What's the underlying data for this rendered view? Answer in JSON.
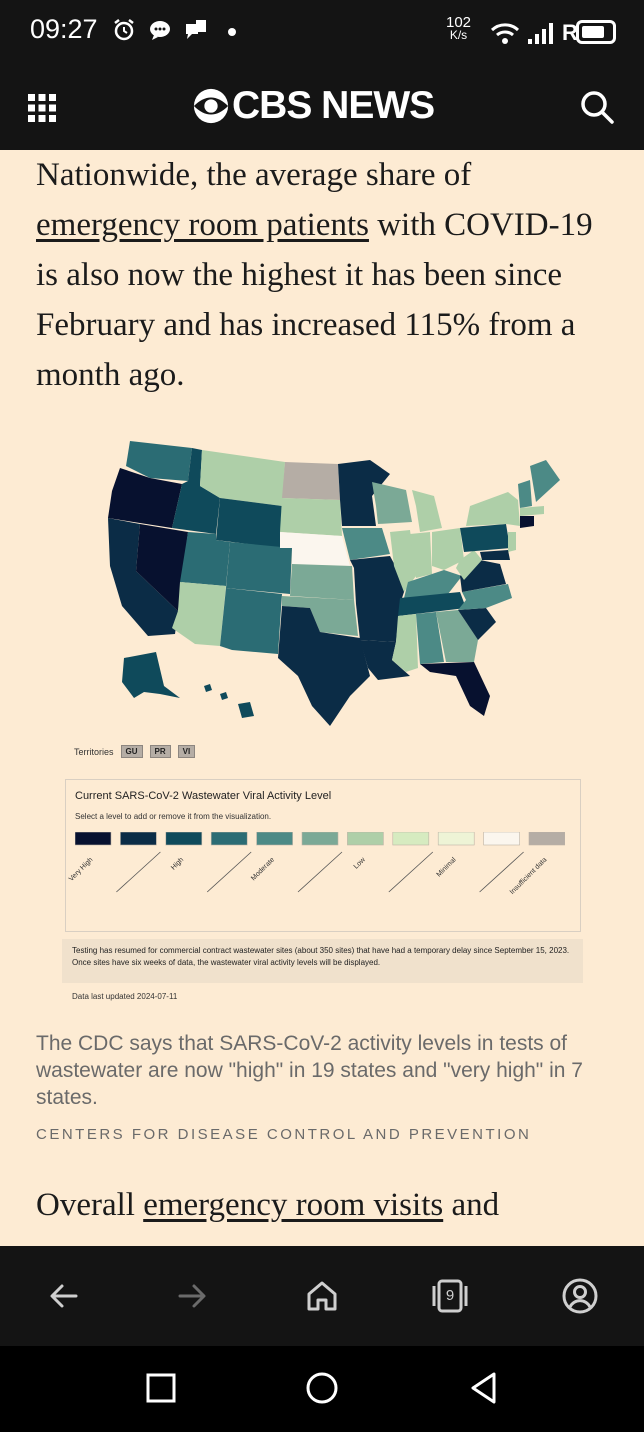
{
  "status_bar": {
    "time": "09:27",
    "speed_value": "102",
    "speed_unit": "K/s",
    "carrier_letter": "R",
    "icons": [
      "alarm-icon",
      "chat-icon",
      "message-icon",
      "dot-icon",
      "wifi-icon",
      "signal-icon",
      "battery-icon"
    ]
  },
  "header": {
    "logo_text": "CBS NEWS",
    "icons": [
      "grid-menu-icon",
      "cbs-eye-logo",
      "search-icon"
    ]
  },
  "article": {
    "para1": {
      "before": "Nationwide, the average share of ",
      "link": "emergency room patients",
      "after": " with COVID-19 is also now the highest it has been since February and has increased 115% from a month ago."
    },
    "figure": {
      "territories_label": "Territories",
      "territories": [
        "GU",
        "PR",
        "VI"
      ],
      "legend_title": "Current SARS-CoV-2 Wastewater Viral Activity Level",
      "legend_subtitle": "Select a level to add or remove it from the visualization.",
      "legend_levels": [
        {
          "label": "Very High",
          "color": "#07112f"
        },
        {
          "label": "",
          "color": "#0b2c46"
        },
        {
          "label": "High",
          "color": "#0f4a5b"
        },
        {
          "label": "",
          "color": "#2b6c74"
        },
        {
          "label": "Moderate",
          "color": "#4c8a86"
        },
        {
          "label": "",
          "color": "#7ba996"
        },
        {
          "label": "Low",
          "color": "#aecfa8"
        },
        {
          "label": "",
          "color": "#d6ebc0"
        },
        {
          "label": "Minimal",
          "color": "#eef4d6"
        },
        {
          "label": "",
          "color": "#fbf6ee"
        },
        {
          "label": "Insufficient data",
          "color": "#b5ada5"
        }
      ],
      "notice": "Testing has resumed for commercial contract wastewater sites (about 350 sites) that have had a temporary delay since September 15, 2023. Once sites have six weeks of data, the wastewater viral activity levels will be displayed.",
      "updated": "Data last updated 2024-07-11"
    },
    "caption": "The CDC says that SARS-CoV-2 activity levels in tests of wastewater are now \"high\" in 19 states and \"very high\" in 7 states.",
    "credit": "CENTERS FOR DISEASE CONTROL AND PREVENTION",
    "para2": {
      "before": "Overall ",
      "link": "emergency room visits",
      "after": " and"
    }
  },
  "browser_bar": {
    "tabs_count": "9",
    "icons": [
      "back-arrow-icon",
      "forward-arrow-icon",
      "home-icon",
      "tabs-icon",
      "profile-icon"
    ]
  },
  "system_nav": {
    "icons": [
      "recents-square-icon",
      "home-circle-icon",
      "back-triangle-icon"
    ]
  },
  "colors": {
    "page_bg": "#fdebd3",
    "header_bg": "#141414"
  }
}
